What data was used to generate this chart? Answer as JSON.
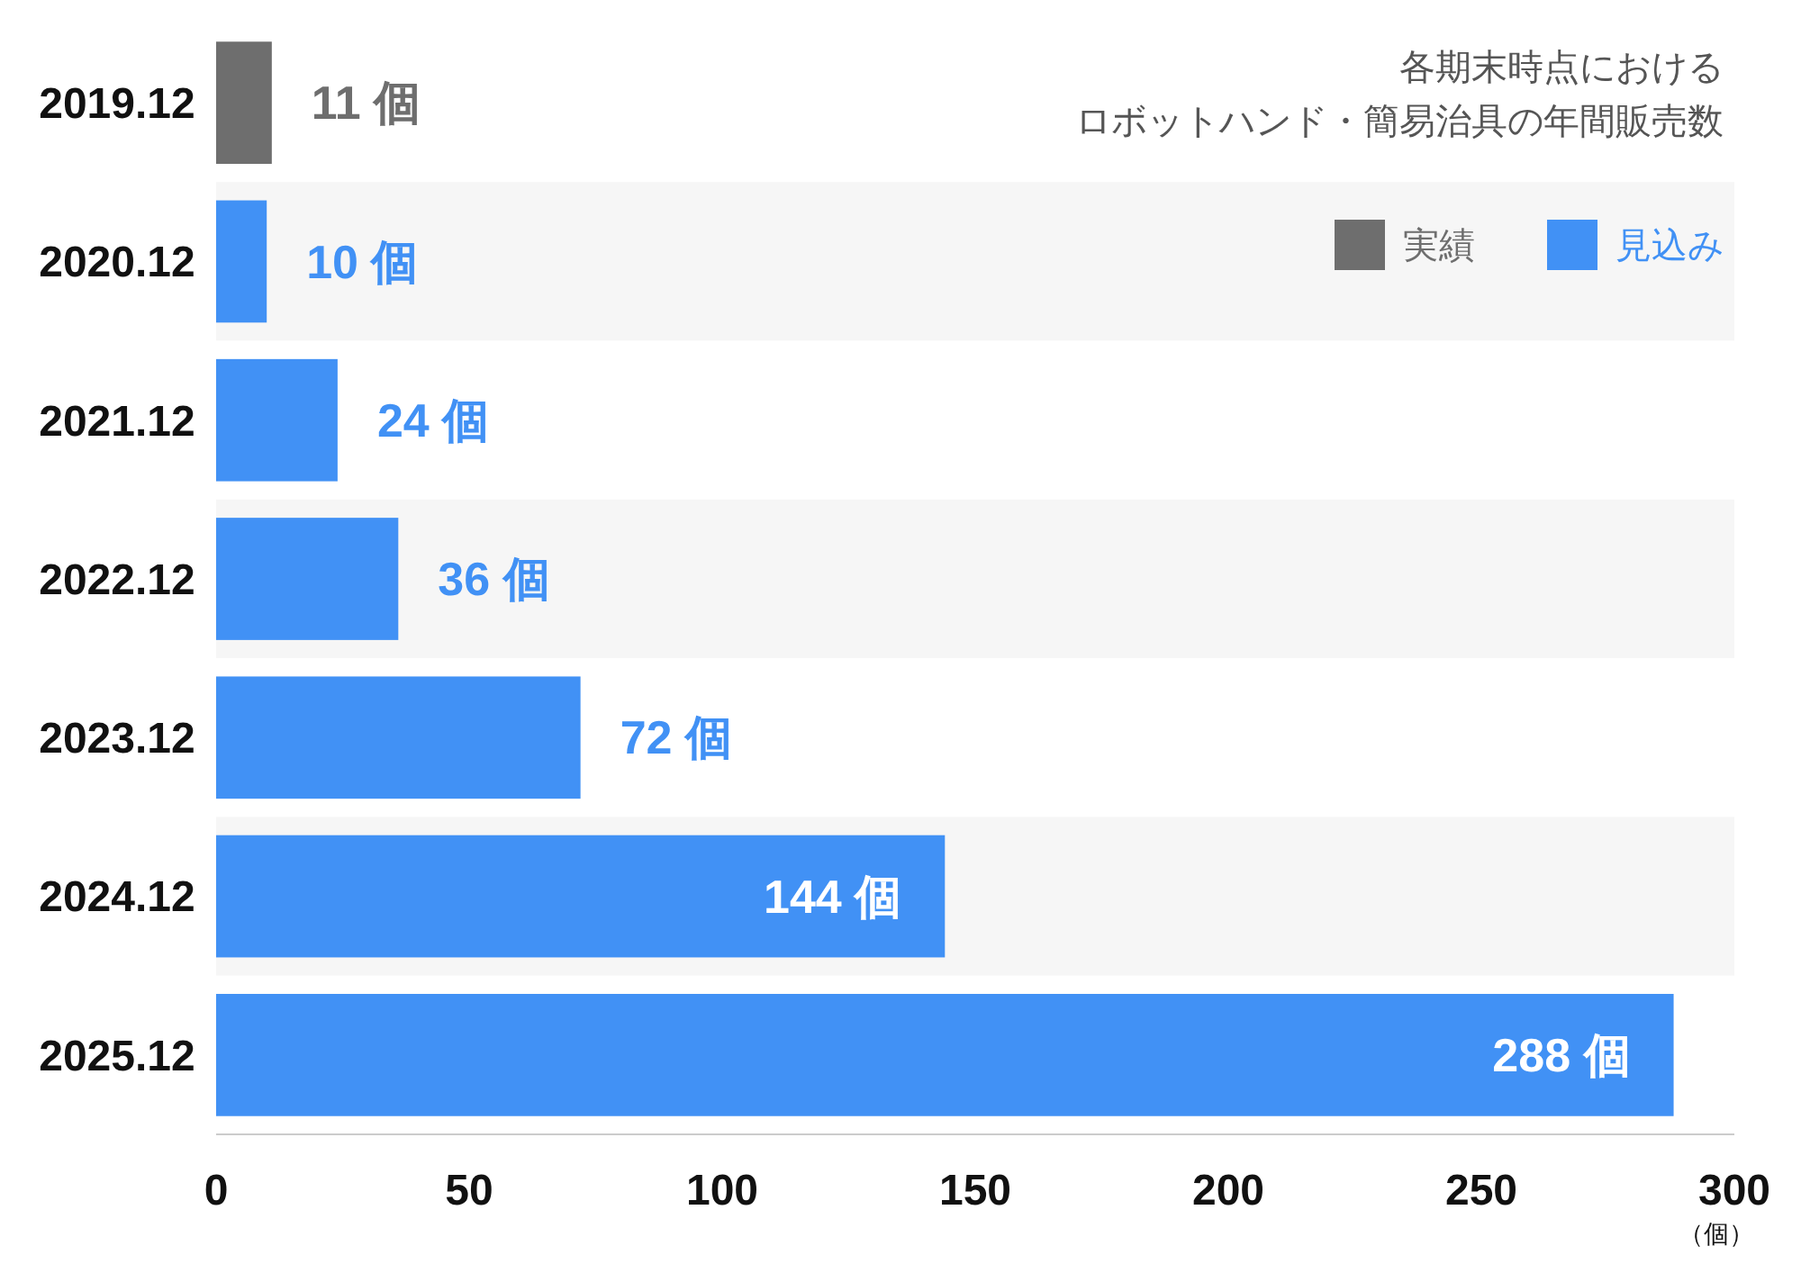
{
  "chart_data": {
    "type": "bar",
    "orientation": "horizontal",
    "title": "各期末時点における",
    "subtitle": "ロボットハンド・簡易治具の年間販売数",
    "xlabel": "（個）",
    "categories": [
      "2019.12",
      "2020.12",
      "2021.12",
      "2022.12",
      "2023.12",
      "2024.12",
      "2025.12"
    ],
    "series": [
      {
        "name": "実績",
        "color": "#6e6e6e",
        "values": [
          11,
          null,
          null,
          null,
          null,
          null,
          null
        ],
        "value_labels": [
          "11 個",
          null,
          null,
          null,
          null,
          null,
          null
        ]
      },
      {
        "name": "見込み",
        "color": "#4191f5",
        "values": [
          null,
          10,
          24,
          36,
          72,
          144,
          288
        ],
        "value_labels": [
          null,
          "10 個",
          "24 個",
          "36 個",
          "72 個",
          "144 個",
          "288 個"
        ]
      }
    ],
    "xlim": [
      0,
      300
    ],
    "xticks": [
      0,
      50,
      100,
      150,
      200,
      250,
      300
    ],
    "legend": "top right",
    "grid": false
  }
}
